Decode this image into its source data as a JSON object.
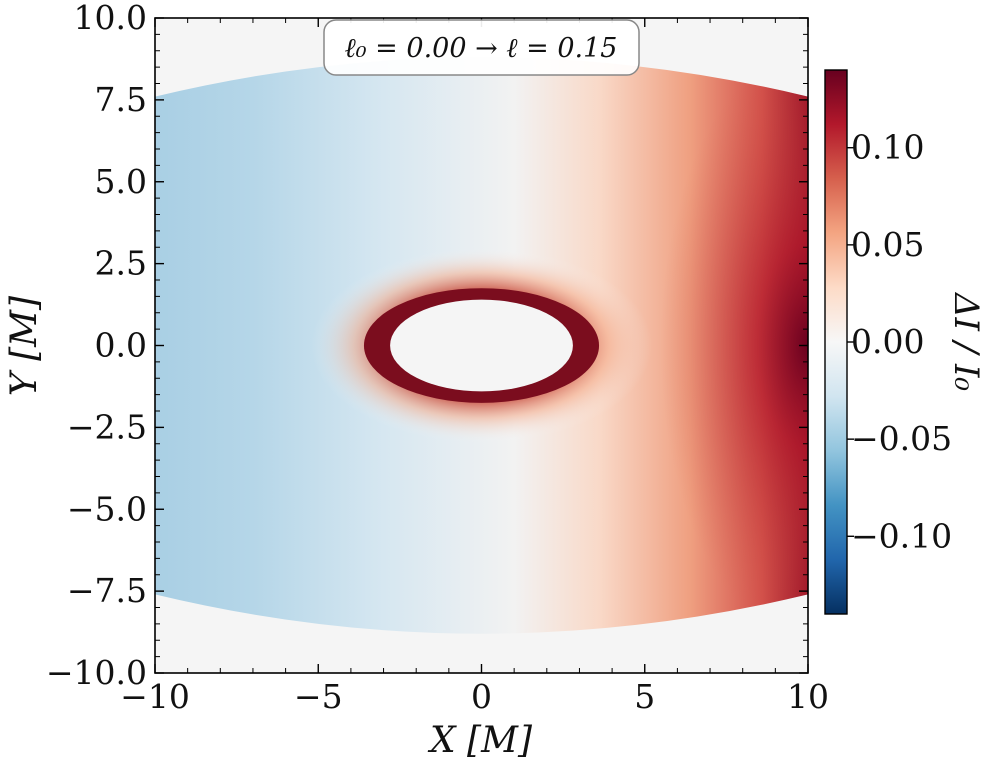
{
  "chart_data": {
    "type": "heatmap",
    "title": "ℓ₀ = 0.00 → ℓ = 0.15",
    "xlabel": "X [M]",
    "ylabel": "Y [M]",
    "xlim": [
      -10,
      10
    ],
    "ylim": [
      -10,
      10
    ],
    "x_ticks": [
      {
        "value": -10,
        "label": "−10"
      },
      {
        "value": -5,
        "label": "−5"
      },
      {
        "value": 0,
        "label": "0"
      },
      {
        "value": 5,
        "label": "5"
      },
      {
        "value": 10,
        "label": "10"
      }
    ],
    "y_ticks": [
      {
        "value": 10,
        "label": "10.0"
      },
      {
        "value": 7.5,
        "label": "7.5"
      },
      {
        "value": 5,
        "label": "5.0"
      },
      {
        "value": 2.5,
        "label": "2.5"
      },
      {
        "value": 0,
        "label": "0.0"
      },
      {
        "value": -2.5,
        "label": "−2.5"
      },
      {
        "value": -5,
        "label": "−5.0"
      },
      {
        "value": -7.5,
        "label": "−7.5"
      },
      {
        "value": -10,
        "label": "−10.0"
      }
    ],
    "colorbar": {
      "label": "ΔI / I₀",
      "colormap": "RdBu_r",
      "range": [
        -0.14,
        0.14
      ],
      "ticks": [
        {
          "value": 0.1,
          "label": "0.10"
        },
        {
          "value": 0.05,
          "label": "0.05"
        },
        {
          "value": 0,
          "label": "0.00"
        },
        {
          "value": -0.05,
          "label": "−0.05"
        },
        {
          "value": -0.1,
          "label": "−0.10"
        }
      ]
    },
    "field_description": {
      "left_region_value_approx": -0.04,
      "right_edge_value_max": 0.14,
      "ring_value": 0.14,
      "shadow_semi_axes": {
        "x": 2.8,
        "y": 1.4
      },
      "ring_semi_axes": {
        "x": 3.6,
        "y": 1.75
      },
      "domain_top_edge_y_at_center": 8.8,
      "domain_top_edge_y_at_sides": 7.6
    },
    "grid": false
  },
  "colors": {
    "background_outside_domain": "#f5f5f5",
    "shadow_fill": "#f5f5f5",
    "ring_color": "#7b0d1e",
    "cmap_stops": [
      "#053061",
      "#2166ac",
      "#4393c3",
      "#92c5de",
      "#d1e5f0",
      "#f7f7f7",
      "#fddbc7",
      "#f4a582",
      "#d6604d",
      "#b2182b",
      "#67001f"
    ]
  }
}
